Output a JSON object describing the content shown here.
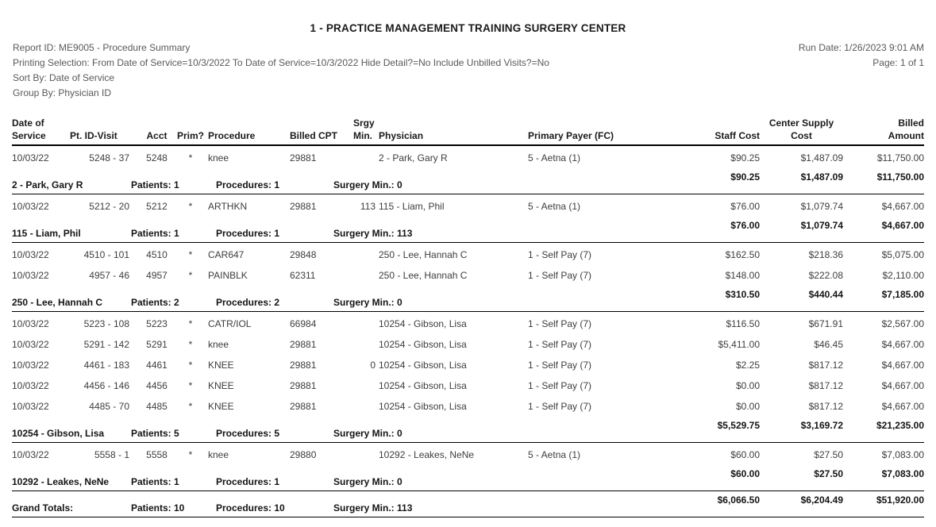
{
  "title": "1 - PRACTICE MANAGEMENT TRAINING SURGERY CENTER",
  "meta": {
    "report_id": "Report ID: ME9005 - Procedure Summary",
    "printing_selection": "Printing Selection: From Date of Service=10/3/2022 To Date of Service=10/3/2022 Hide Detail?=No Include Unbilled Visits?=No",
    "sort_by": "Sort By: Date of Service",
    "group_by": "Group By: Physician ID",
    "run_date": "Run Date: 1/26/2023 9:01 AM",
    "page": "Page: 1 of 1"
  },
  "columns": [
    {
      "line1": "Date of",
      "line2": "Service"
    },
    {
      "line1": "",
      "line2": "Pt. ID-Visit"
    },
    {
      "line1": "",
      "line2": "Acct"
    },
    {
      "line1": "",
      "line2": "Prim?"
    },
    {
      "line1": "",
      "line2": "Procedure"
    },
    {
      "line1": "",
      "line2": "Billed CPT"
    },
    {
      "line1": "Srgy",
      "line2": "Min."
    },
    {
      "line1": "",
      "line2": "Physician"
    },
    {
      "line1": "",
      "line2": "Primary Payer (FC)"
    },
    {
      "line1": "",
      "line2": "Staff Cost"
    },
    {
      "line1": "Center Supply",
      "line2": "Cost"
    },
    {
      "line1": "Billed",
      "line2": "Amount"
    }
  ],
  "groups": [
    {
      "rows": [
        {
          "date": "10/03/22",
          "pt_id_visit": "5248 - 37",
          "acct": "5248",
          "prim": "*",
          "procedure": "knee",
          "billed_cpt": "29881",
          "srgy_min": "",
          "physician": "2 - Park, Gary R",
          "primary_payer": "5 - Aetna (1)",
          "staff_cost": "$90.25",
          "center_supply_cost": "$1,487.09",
          "billed_amount": "$11,750.00"
        }
      ],
      "footer": {
        "label": "2 - Park, Gary R",
        "patients": "Patients: 1",
        "procedures": "Procedures: 1",
        "surgery_min": "Surgery Min.: 0",
        "staff_cost": "$90.25",
        "center_supply_cost": "$1,487.09",
        "billed_amount": "$11,750.00"
      }
    },
    {
      "rows": [
        {
          "date": "10/03/22",
          "pt_id_visit": "5212 - 20",
          "acct": "5212",
          "prim": "*",
          "procedure": "ARTHKN",
          "billed_cpt": "29881",
          "srgy_min": "113",
          "physician": "115 - Liam, Phil",
          "primary_payer": "5 - Aetna (1)",
          "staff_cost": "$76.00",
          "center_supply_cost": "$1,079.74",
          "billed_amount": "$4,667.00"
        }
      ],
      "footer": {
        "label": "115 - Liam, Phil",
        "patients": "Patients: 1",
        "procedures": "Procedures: 1",
        "surgery_min": "Surgery Min.: 113",
        "staff_cost": "$76.00",
        "center_supply_cost": "$1,079.74",
        "billed_amount": "$4,667.00"
      }
    },
    {
      "rows": [
        {
          "date": "10/03/22",
          "pt_id_visit": "4510 - 101",
          "acct": "4510",
          "prim": "*",
          "procedure": "CAR647",
          "billed_cpt": "29848",
          "srgy_min": "",
          "physician": "250 - Lee, Hannah C",
          "primary_payer": "1 - Self Pay (7)",
          "staff_cost": "$162.50",
          "center_supply_cost": "$218.36",
          "billed_amount": "$5,075.00"
        },
        {
          "date": "10/03/22",
          "pt_id_visit": "4957 - 46",
          "acct": "4957",
          "prim": "*",
          "procedure": "PAINBLK",
          "billed_cpt": "62311",
          "srgy_min": "",
          "physician": "250 - Lee, Hannah C",
          "primary_payer": "1 - Self Pay (7)",
          "staff_cost": "$148.00",
          "center_supply_cost": "$222.08",
          "billed_amount": "$2,110.00"
        }
      ],
      "footer": {
        "label": "250 - Lee, Hannah C",
        "patients": "Patients: 2",
        "procedures": "Procedures: 2",
        "surgery_min": "Surgery Min.: 0",
        "staff_cost": "$310.50",
        "center_supply_cost": "$440.44",
        "billed_amount": "$7,185.00"
      }
    },
    {
      "rows": [
        {
          "date": "10/03/22",
          "pt_id_visit": "5223 - 108",
          "acct": "5223",
          "prim": "*",
          "procedure": "CATR/IOL",
          "billed_cpt": "66984",
          "srgy_min": "",
          "physician": "10254 - Gibson, Lisa",
          "primary_payer": "1 - Self Pay (7)",
          "staff_cost": "$116.50",
          "center_supply_cost": "$671.91",
          "billed_amount": "$2,567.00"
        },
        {
          "date": "10/03/22",
          "pt_id_visit": "5291 - 142",
          "acct": "5291",
          "prim": "*",
          "procedure": "knee",
          "billed_cpt": "29881",
          "srgy_min": "",
          "physician": "10254 - Gibson, Lisa",
          "primary_payer": "1 - Self Pay (7)",
          "staff_cost": "$5,411.00",
          "center_supply_cost": "$46.45",
          "billed_amount": "$4,667.00"
        },
        {
          "date": "10/03/22",
          "pt_id_visit": "4461 - 183",
          "acct": "4461",
          "prim": "*",
          "procedure": "KNEE",
          "billed_cpt": "29881",
          "srgy_min": "0",
          "physician": "10254 - Gibson, Lisa",
          "primary_payer": "1 - Self Pay (7)",
          "staff_cost": "$2.25",
          "center_supply_cost": "$817.12",
          "billed_amount": "$4,667.00"
        },
        {
          "date": "10/03/22",
          "pt_id_visit": "4456 - 146",
          "acct": "4456",
          "prim": "*",
          "procedure": "KNEE",
          "billed_cpt": "29881",
          "srgy_min": "",
          "physician": "10254 - Gibson, Lisa",
          "primary_payer": "1 - Self Pay (7)",
          "staff_cost": "$0.00",
          "center_supply_cost": "$817.12",
          "billed_amount": "$4,667.00"
        },
        {
          "date": "10/03/22",
          "pt_id_visit": "4485 - 70",
          "acct": "4485",
          "prim": "*",
          "procedure": "KNEE",
          "billed_cpt": "29881",
          "srgy_min": "",
          "physician": "10254 - Gibson, Lisa",
          "primary_payer": "1 - Self Pay (7)",
          "staff_cost": "$0.00",
          "center_supply_cost": "$817.12",
          "billed_amount": "$4,667.00"
        }
      ],
      "footer": {
        "label": "10254 - Gibson, Lisa",
        "patients": "Patients: 5",
        "procedures": "Procedures: 5",
        "surgery_min": "Surgery Min.: 0",
        "staff_cost": "$5,529.75",
        "center_supply_cost": "$3,169.72",
        "billed_amount": "$21,235.00"
      }
    },
    {
      "rows": [
        {
          "date": "10/03/22",
          "pt_id_visit": "5558 - 1",
          "acct": "5558",
          "prim": "*",
          "procedure": "knee",
          "billed_cpt": "29880",
          "srgy_min": "",
          "physician": "10292 - Leakes, NeNe",
          "primary_payer": "5 - Aetna (1)",
          "staff_cost": "$60.00",
          "center_supply_cost": "$27.50",
          "billed_amount": "$7,083.00"
        }
      ],
      "footer": {
        "label": "10292 - Leakes, NeNe",
        "patients": "Patients: 1",
        "procedures": "Procedures: 1",
        "surgery_min": "Surgery Min.: 0",
        "staff_cost": "$60.00",
        "center_supply_cost": "$27.50",
        "billed_amount": "$7,083.00"
      }
    }
  ],
  "grand_totals": {
    "label": "Grand Totals:",
    "patients": "Patients: 10",
    "procedures": "Procedures: 10",
    "surgery_min": "Surgery Min.: 113",
    "staff_cost": "$6,066.50",
    "center_supply_cost": "$6,204.49",
    "billed_amount": "$51,920.00"
  }
}
